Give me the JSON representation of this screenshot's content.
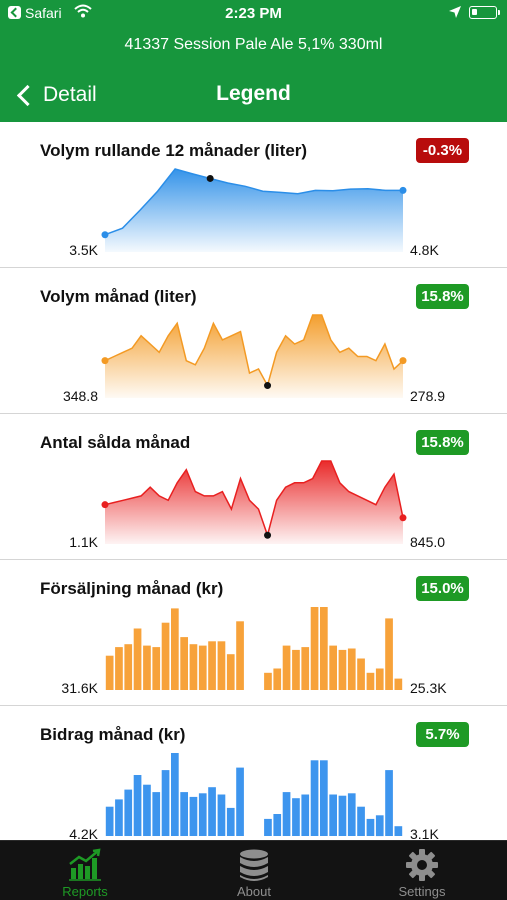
{
  "status_bar": {
    "carrier": "Safari",
    "time": "2:23 PM"
  },
  "header": {
    "product": "41337 Session Pale Ale 5,1% 330ml",
    "back_label": "Detail",
    "title": "Legend"
  },
  "colors": {
    "header_bg": "#17963d",
    "negative": "#b80c0c",
    "positive": "#1e9a25"
  },
  "sections": [
    {
      "title": "Volym rullande 12 månader (liter)",
      "badge": "-0.3%",
      "badge_kind": "negative",
      "min_label": "3.5K",
      "max_label": "4.8K",
      "color": "#2b8ee8",
      "chart_data": {
        "type": "area",
        "values": [
          4.2,
          5.8,
          10.2,
          14.8,
          20.2,
          19.0,
          17.9,
          16.8,
          16.0,
          14.8,
          14.5,
          14.2,
          15.0,
          14.9,
          15.3,
          15.4,
          15.0,
          15.0
        ],
        "markers": {
          "first": [
            0,
            "#2b8ee8"
          ],
          "mid": [
            6,
            "#111111"
          ],
          "last": [
            17,
            "#2b8ee8"
          ]
        }
      }
    },
    {
      "title": "Volym månad (liter)",
      "badge": "15.8%",
      "badge_kind": "positive",
      "min_label": "348.8",
      "max_label": "278.9",
      "color": "#f39a24",
      "chart_data": {
        "type": "area",
        "values": [
          9,
          10,
          11,
          12,
          15,
          13,
          11,
          15,
          18,
          9,
          8,
          12,
          18,
          14,
          15,
          16,
          6,
          7,
          3,
          11,
          15,
          13,
          14,
          20,
          20,
          14,
          11,
          12,
          10,
          10,
          9,
          13,
          7,
          9
        ],
        "markers": {
          "first": [
            0,
            "#f39a24"
          ],
          "mid": [
            18,
            "#111111"
          ],
          "last": [
            33,
            "#f39a24"
          ]
        }
      }
    },
    {
      "title": "Antal sålda månad",
      "badge": "15.8%",
      "badge_kind": "positive",
      "min_label": "1.1K",
      "max_label": "845.0",
      "color": "#e82020",
      "chart_data": {
        "type": "area",
        "values": [
          9,
          9.5,
          10,
          10.5,
          11,
          13,
          11,
          10,
          14,
          17,
          12,
          11,
          11,
          12,
          8,
          15,
          10,
          8,
          2,
          10,
          13,
          14,
          14,
          15,
          19,
          19,
          14,
          12,
          11,
          10,
          9,
          13,
          16,
          6
        ],
        "markers": {
          "first": [
            0,
            "#e82020"
          ],
          "mid": [
            18,
            "#111111"
          ],
          "last": [
            33,
            "#e82020"
          ]
        }
      }
    },
    {
      "title": "Försäljning månad (kr)",
      "badge": "15.0%",
      "badge_kind": "positive",
      "min_label": "31.6K",
      "max_label": "25.3K",
      "color": "#f7a23a",
      "chart_data": {
        "type": "bar",
        "values": [
          24,
          30,
          32,
          43,
          31,
          30,
          47,
          57,
          37,
          32,
          31,
          34,
          34,
          25,
          48,
          0,
          0,
          12,
          15,
          31,
          28,
          30,
          58,
          58,
          31,
          28,
          29,
          22,
          12,
          15,
          50,
          8
        ]
      }
    },
    {
      "title": "Bidrag månad (kr)",
      "badge": "5.7%",
      "badge_kind": "positive",
      "min_label": "4.2K",
      "max_label": "3.1K",
      "color": "#3d95ee",
      "chart_data": {
        "type": "bar",
        "values": [
          24,
          30,
          38,
          50,
          42,
          36,
          54,
          68,
          36,
          32,
          35,
          40,
          34,
          23,
          56,
          0,
          0,
          14,
          18,
          36,
          31,
          34,
          62,
          62,
          34,
          33,
          35,
          24,
          14,
          17,
          54,
          8
        ]
      }
    }
  ],
  "tabs": [
    {
      "label": "Reports",
      "icon": "chart-icon",
      "active": true
    },
    {
      "label": "About",
      "icon": "database-icon",
      "active": false
    },
    {
      "label": "Settings",
      "icon": "gear-icon",
      "active": false
    }
  ]
}
